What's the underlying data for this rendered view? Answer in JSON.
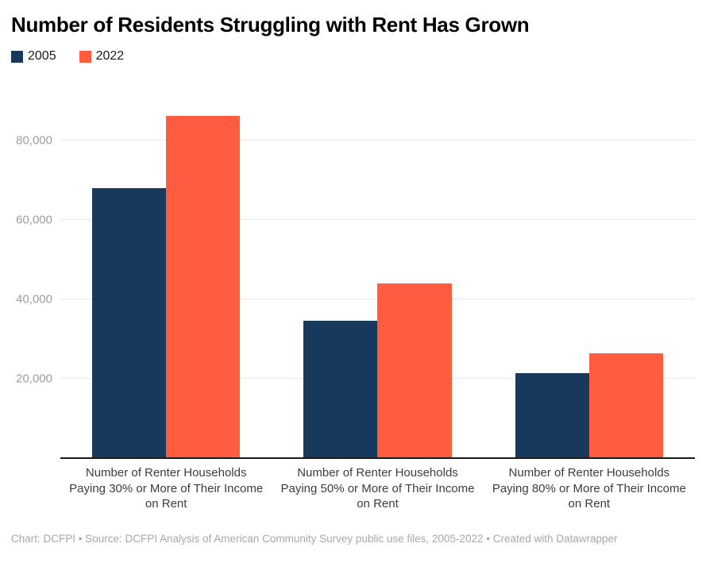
{
  "title": "Number of Residents Struggling with Rent Has Grown",
  "chart_data": {
    "type": "bar",
    "title": "Number of Residents Struggling with Rent Has Grown",
    "categories": [
      "Number of Renter Households Paying 30% or More of Their Income on Rent",
      "Number of Renter Households Paying 50% or More of Their Income on Rent",
      "Number of Renter Households Paying 80% or More of Their Income on Rent"
    ],
    "series": [
      {
        "name": "2005",
        "color": "#17395C",
        "values": [
          68000,
          34700,
          21400
        ]
      },
      {
        "name": "2022",
        "color": "#FF5C40",
        "values": [
          86300,
          44000,
          26500
        ]
      }
    ],
    "xlabel": "",
    "ylabel": "",
    "ylim": [
      0,
      88000
    ],
    "yticks": [
      20000,
      40000,
      60000,
      80000
    ],
    "ytick_labels": [
      "20,000",
      "40,000",
      "60,000",
      "80,000"
    ],
    "grid": true,
    "legend_position": "top-left",
    "colors": {
      "series_2005": "#17395C",
      "series_2022": "#FF5C40",
      "gridline": "#e9e9e9",
      "axis_line": "#191a1e",
      "ytick_text": "#9d9d9d",
      "category_text": "#3d3d3d",
      "footer_text": "#a8a8a8"
    }
  },
  "footer": {
    "text": "Chart: DCFPI • Source: DCFPI Analysis of American Community Survey public use files, 2005-2022 • Created with Datawrapper"
  }
}
